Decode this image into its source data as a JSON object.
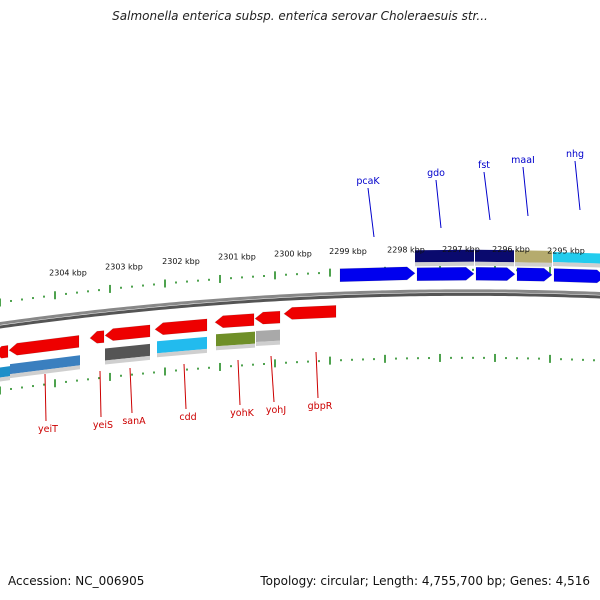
{
  "title": "Salmonella enterica subsp. enterica serovar Choleraesuis str...",
  "footer": {
    "accession": "Accession: NC_006905",
    "summary": "Topology: circular; Length: 4,755,700 bp; Genes: 4,516"
  },
  "colors": {
    "forward_gene": "#0000ee",
    "reverse_gene": "#ee0000",
    "forward_label": "#0000cc",
    "reverse_label": "#cc0000",
    "tick": "#228b22",
    "backbone": "#888888"
  },
  "kbp_labels": [
    "2295 kbp",
    "2296 kbp",
    "2297 kbp",
    "2298 kbp",
    "2299 kbp",
    "2300 kbp",
    "2301 kbp",
    "2302 kbp",
    "2303 kbp",
    "2304 kbp"
  ],
  "forward_genes": [
    {
      "label": "pcaK",
      "color": "#0000ee"
    },
    {
      "label": "gdo",
      "color": "#0000ee"
    },
    {
      "label": "fst",
      "color": "#0000ee"
    },
    {
      "label": "maaI",
      "color": "#0000ee"
    },
    {
      "label": "nhg",
      "color": "#0000ee"
    }
  ],
  "reverse_genes": [
    {
      "label": "yeiT",
      "color": "#ee0000"
    },
    {
      "label": "yeiS",
      "color": "#ee0000"
    },
    {
      "label": "sanA",
      "color": "#ee0000"
    },
    {
      "label": "cdd",
      "color": "#ee0000"
    },
    {
      "label": "yohK",
      "color": "#ee0000"
    },
    {
      "label": "yohJ",
      "color": "#ee0000"
    },
    {
      "label": "gbpR",
      "color": "#ee0000"
    }
  ]
}
